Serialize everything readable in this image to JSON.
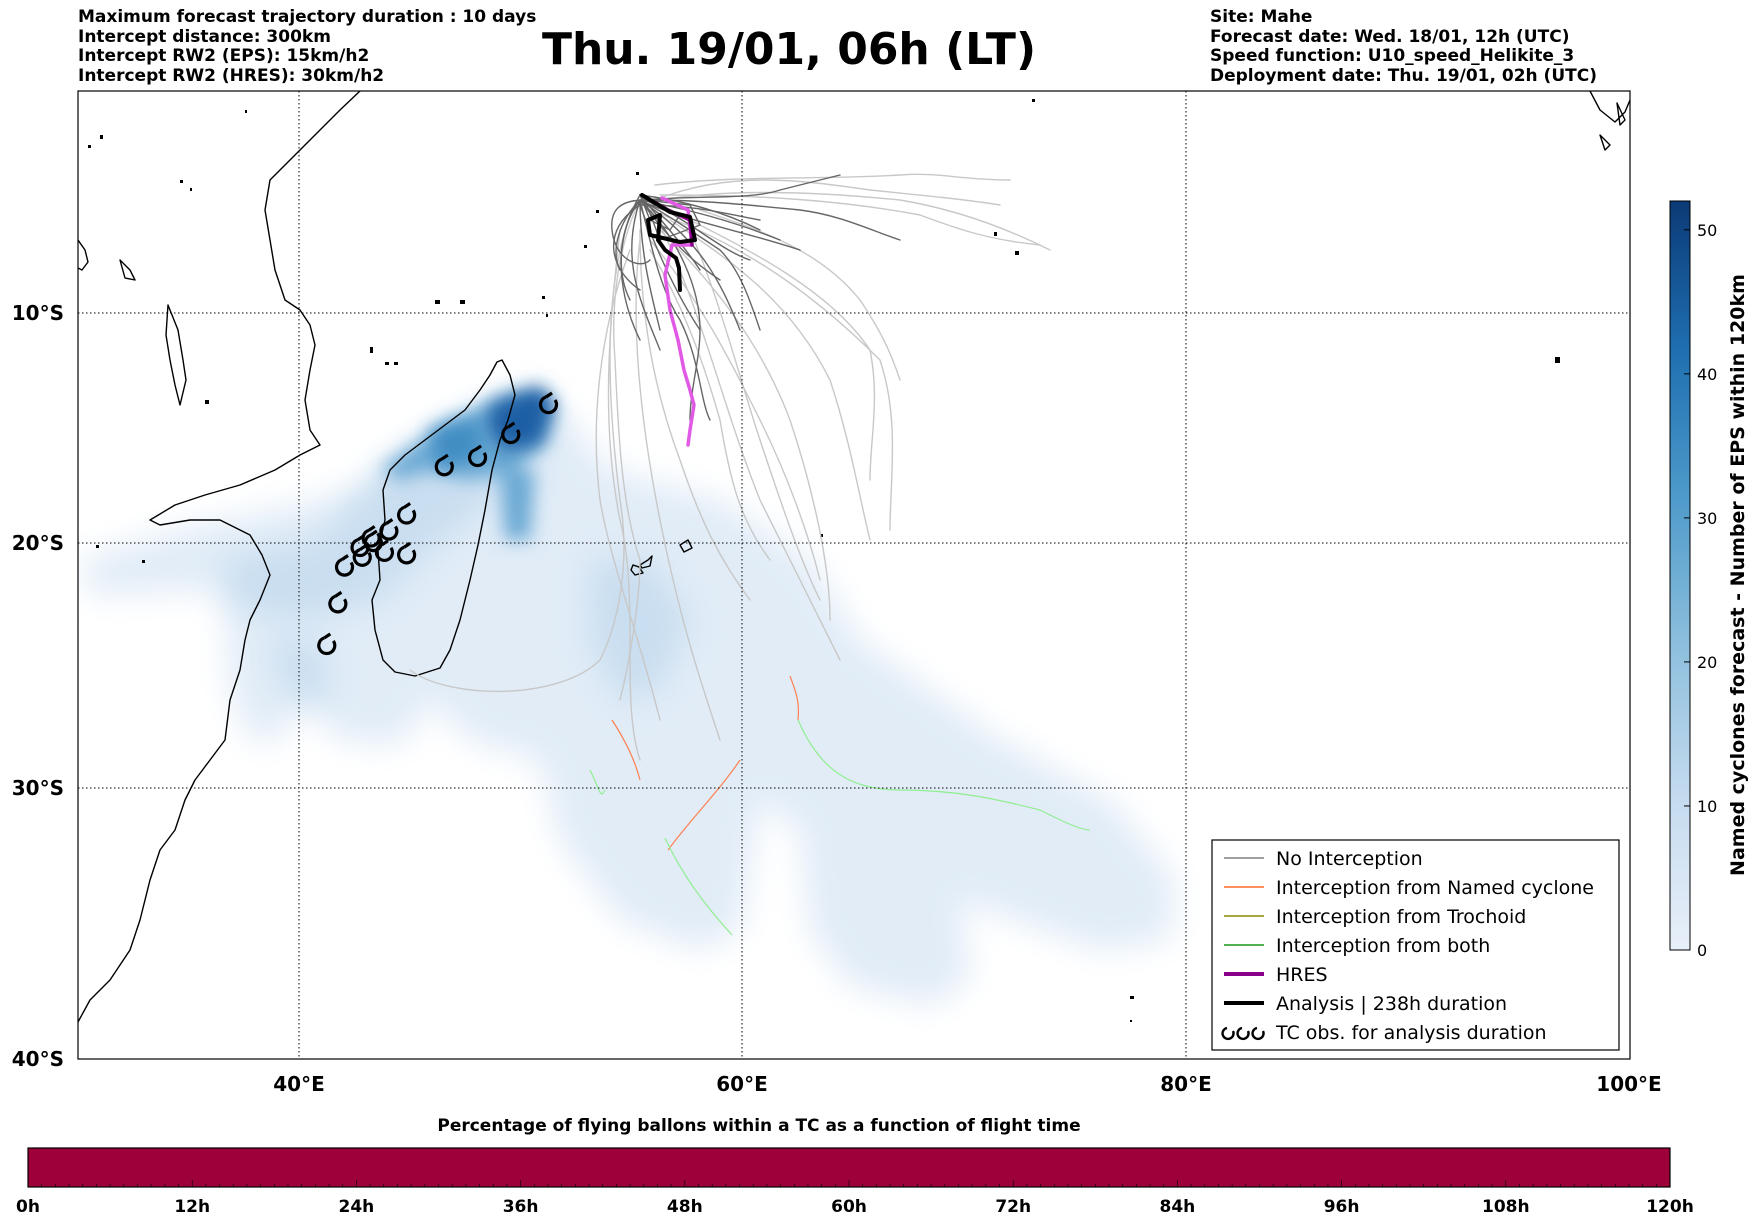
{
  "header": {
    "left_lines": [
      "Maximum forecast trajectory duration : 10 days",
      "Intercept distance: 300km",
      "Intercept RW2 (EPS):  15km/h2",
      "Intercept RW2 (HRES): 30km/h2"
    ],
    "title": "Thu. 19/01, 06h (LT)",
    "right_lines": [
      "Site: Mahe",
      "Forecast date: Wed. 18/01, 12h (UTC)",
      "Speed function: U10_speed_Helikite_3",
      "Deployment date: Thu. 19/01, 02h (UTC)"
    ]
  },
  "map": {
    "lat_labels": [
      "10°S",
      "20°S",
      "30°S",
      "40°S"
    ],
    "lon_labels": [
      "40°E",
      "60°E",
      "80°E",
      "100°E"
    ],
    "lon_range": [
      30,
      100
    ],
    "lat_range": [
      -40,
      -0.2
    ]
  },
  "legend": {
    "items": [
      {
        "label": "No Interception",
        "color": "#808080",
        "style": "thin"
      },
      {
        "label": "Interception from Named cyclone",
        "color": "#ff6a2a",
        "style": "thin"
      },
      {
        "label": "Interception from Trochoid",
        "color": "#8b8b00",
        "style": "thin"
      },
      {
        "label": "Interception from both",
        "color": "#1a9a1a",
        "style": "thin"
      },
      {
        "label": "HRES",
        "color": "#8b008b",
        "style": "thick"
      },
      {
        "label": "Analysis | 238h duration",
        "color": "#000000",
        "style": "thick"
      },
      {
        "label": "TC obs. for analysis duration",
        "color": "#000000",
        "style": "symbol"
      }
    ]
  },
  "colorbar": {
    "label": "Named cyclones forecast - Number of EPS within 120km",
    "ticks": [
      "0",
      "10",
      "20",
      "30",
      "40",
      "50"
    ],
    "tick_values": [
      0,
      10,
      20,
      30,
      40,
      50
    ],
    "max": 52
  },
  "flight_bar": {
    "title": "Percentage of flying ballons within a TC as a function of flight time",
    "ticks": [
      "0h",
      "12h",
      "24h",
      "36h",
      "48h",
      "60h",
      "72h",
      "84h",
      "96h",
      "108h",
      "120h"
    ],
    "color": "#9e003a"
  },
  "chart_data": {
    "type": "map",
    "site": "Mahe",
    "hres_track": [
      [
        57.0,
        -5.3
      ],
      [
        57.4,
        -5.5
      ],
      [
        57.9,
        -6.3
      ],
      [
        57.0,
        -7.0
      ],
      [
        56.7,
        -8.0
      ],
      [
        57.0,
        -9.0
      ],
      [
        57.3,
        -10.5
      ],
      [
        57.6,
        -12.0
      ],
      [
        57.9,
        -13.5
      ],
      [
        58.0,
        -14.8
      ],
      [
        57.6,
        -15.8
      ],
      [
        57.6,
        -16.5
      ]
    ],
    "analysis_track": [
      [
        55.6,
        -5.2
      ],
      [
        57.0,
        -6.4
      ],
      [
        57.3,
        -6.5
      ],
      [
        58.0,
        -6.8
      ],
      [
        57.7,
        -7.3
      ],
      [
        56.0,
        -7.2
      ],
      [
        55.8,
        -6.5
      ],
      [
        56.8,
        -6.8
      ],
      [
        56.5,
        -7.5
      ],
      [
        56.8,
        -8.1
      ],
      [
        57.0,
        -8.7
      ]
    ],
    "tc_obs": [
      [
        51.2,
        -14.0
      ],
      [
        49.5,
        -15.3
      ],
      [
        48.0,
        -16.3
      ],
      [
        46.5,
        -16.7
      ],
      [
        44.8,
        -18.8
      ],
      [
        44.0,
        -19.5
      ],
      [
        43.2,
        -19.8
      ],
      [
        42.7,
        -20.2
      ],
      [
        43.3,
        -20.0
      ],
      [
        42.8,
        -20.6
      ],
      [
        43.8,
        -20.4
      ],
      [
        44.8,
        -20.5
      ],
      [
        42.0,
        -21.0
      ],
      [
        41.7,
        -22.5
      ],
      [
        41.2,
        -24.2
      ]
    ]
  }
}
